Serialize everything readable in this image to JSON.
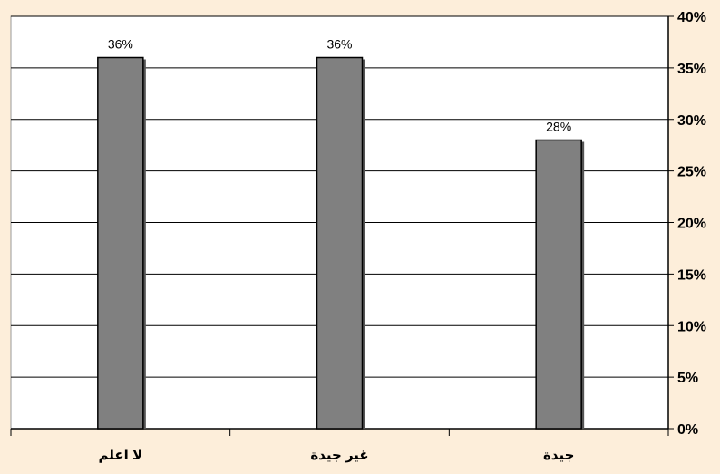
{
  "chart_data": {
    "type": "bar",
    "title": "",
    "xlabel": "",
    "ylabel": "",
    "categories": [
      "لا اعلم",
      "غير جيدة",
      "جيدة"
    ],
    "values": [
      36,
      36,
      28
    ],
    "value_labels": [
      "36%",
      "36%",
      "28%"
    ],
    "ylim": [
      0,
      40
    ],
    "y_ticks": [
      0,
      5,
      10,
      15,
      20,
      25,
      30,
      35,
      40
    ],
    "y_tick_labels": [
      "0%",
      "5%",
      "10%",
      "15%",
      "20%",
      "25%",
      "30%",
      "35%",
      "40%"
    ],
    "y_axis_side": "right",
    "grid": true,
    "legend": "none",
    "colors": {
      "background": "#fdeeda",
      "plot_area": "#ffffff",
      "bar": "#808080",
      "bar_stroke": "#000000",
      "grid": "#000000"
    }
  }
}
